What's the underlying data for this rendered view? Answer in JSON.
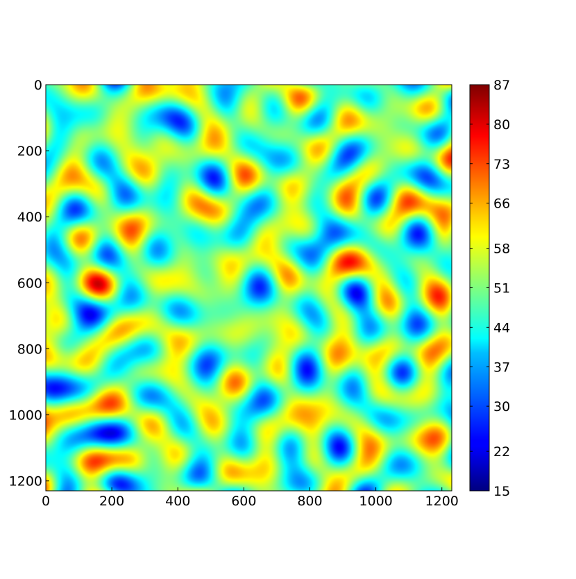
{
  "chart_data": {
    "type": "heatmap",
    "colormap": "jet",
    "grid": false,
    "x_axis": {
      "range": [
        0,
        1230
      ],
      "ticks": [
        0,
        200,
        400,
        600,
        800,
        1000,
        1200
      ]
    },
    "y_axis": {
      "range": [
        0,
        1230
      ],
      "inverted": true,
      "ticks": [
        0,
        200,
        400,
        600,
        800,
        1000,
        1200
      ]
    },
    "colorbar": {
      "range": [
        15,
        87
      ],
      "ticks": [
        15,
        22,
        30,
        37,
        44,
        51,
        58,
        66,
        73,
        80,
        87
      ],
      "placement": "right"
    },
    "field": {
      "description_values": "smooth random field with values in colorbar range",
      "mean": 50
    }
  }
}
